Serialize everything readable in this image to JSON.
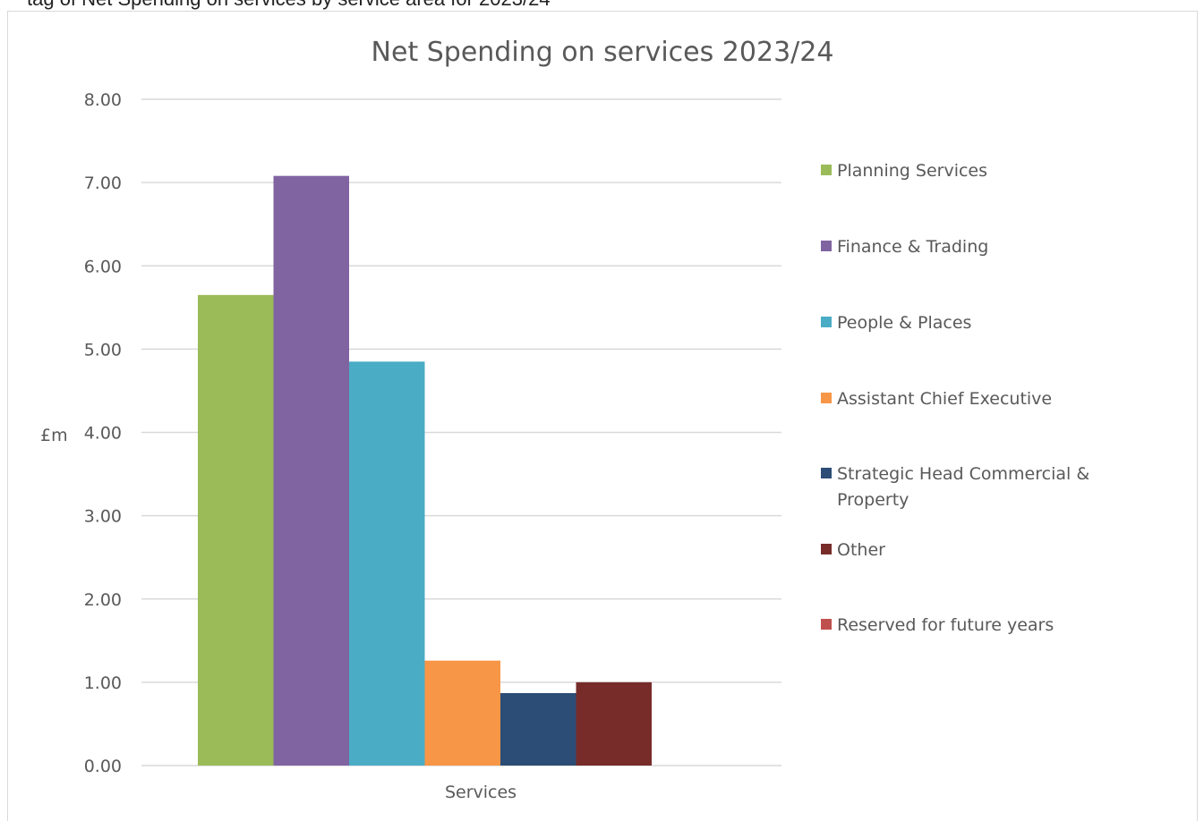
{
  "page": {
    "cropped_text_above": "tag of Net Spending on services by service area for 2023/24"
  },
  "chart_data": {
    "type": "bar",
    "title": "Net Spending on services 2023/24",
    "xlabel": "",
    "ylabel": "£m",
    "categories": [
      "Services"
    ],
    "ylim": [
      0,
      8
    ],
    "yticks": [
      "0.00",
      "1.00",
      "2.00",
      "3.00",
      "4.00",
      "5.00",
      "6.00",
      "7.00",
      "8.00"
    ],
    "grid": true,
    "legend_position": "right",
    "series": [
      {
        "name": "Planning Services",
        "values": [
          5.65
        ],
        "color": "#9bbb59"
      },
      {
        "name": "Finance & Trading",
        "values": [
          7.08
        ],
        "color": "#8064a2"
      },
      {
        "name": "People & Places",
        "values": [
          4.85
        ],
        "color": "#4bacc6"
      },
      {
        "name": "Assistant Chief Executive",
        "values": [
          1.26
        ],
        "color": "#f79646"
      },
      {
        "name": "Strategic Head Commercial & Property",
        "values": [
          0.87
        ],
        "color": "#2c4d75"
      },
      {
        "name": "Other",
        "values": [
          1.0
        ],
        "color": "#772c2a"
      },
      {
        "name": "Reserved for future years",
        "values": [
          0
        ],
        "color": "#c0504d"
      }
    ]
  }
}
